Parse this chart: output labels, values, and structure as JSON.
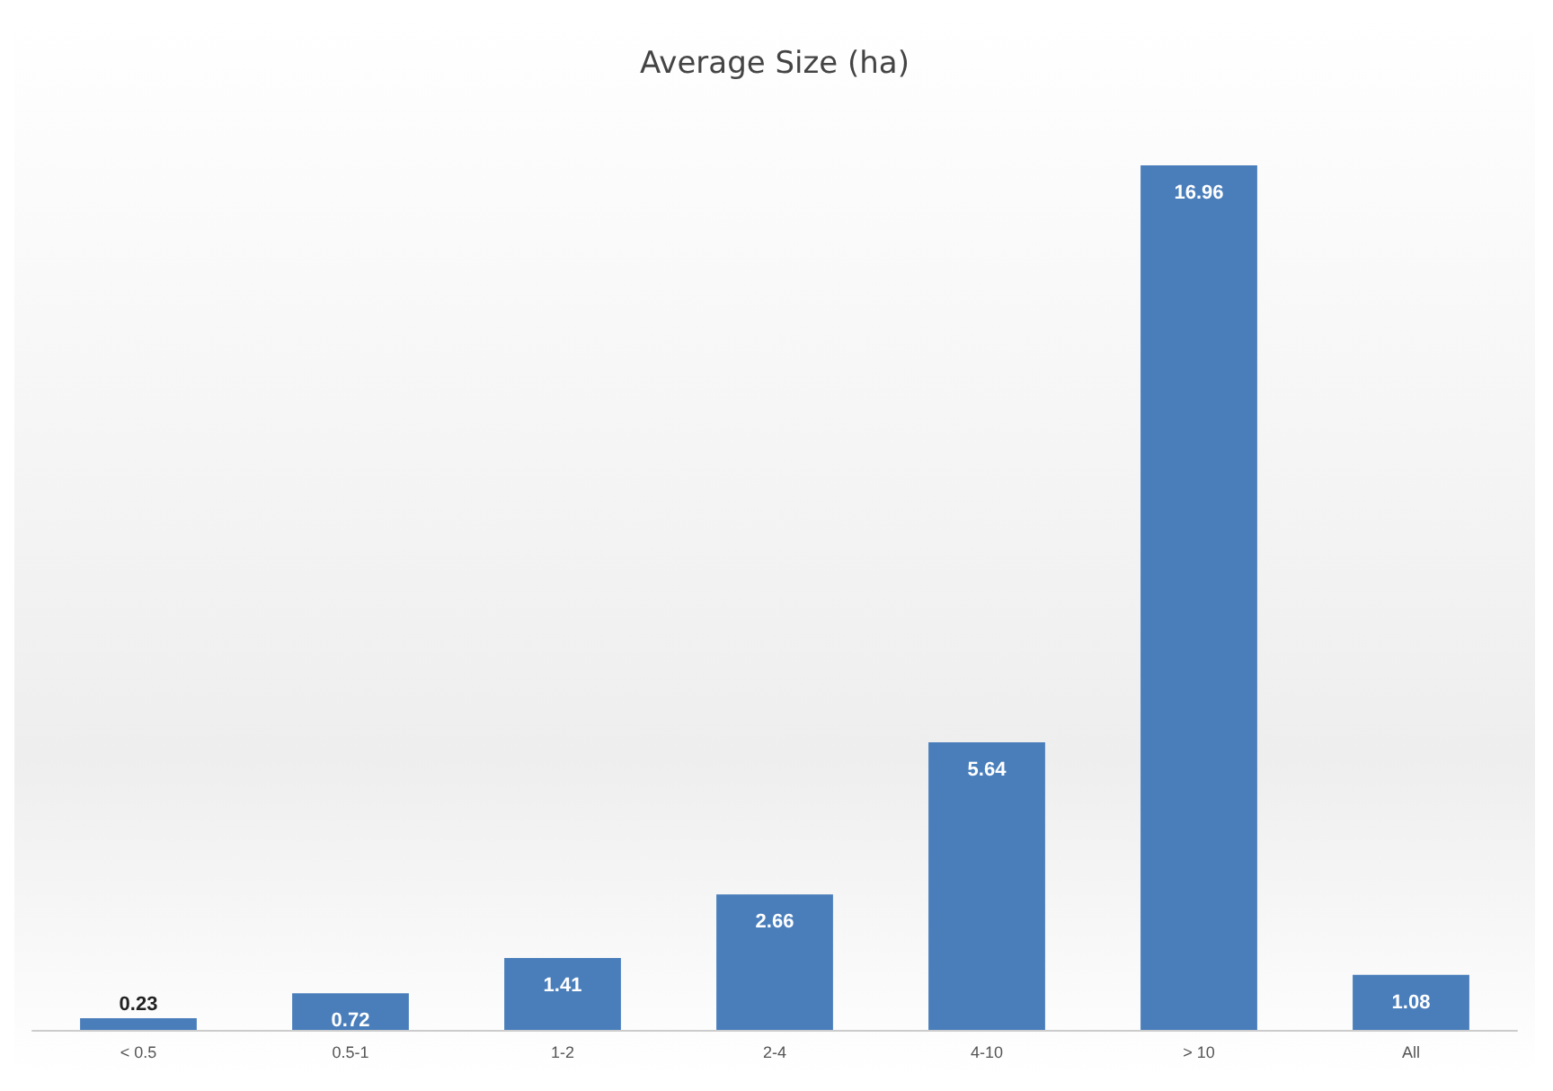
{
  "chart_data": {
    "type": "bar",
    "title": "Average Size (ha)",
    "categories": [
      "< 0.5",
      "0.5-1",
      "1-2",
      "2-4",
      "4-10",
      "> 10",
      "All"
    ],
    "values": [
      0.23,
      0.72,
      1.41,
      2.66,
      5.64,
      16.96,
      1.08
    ],
    "color": "#4a7ebb",
    "data_labels": true
  }
}
